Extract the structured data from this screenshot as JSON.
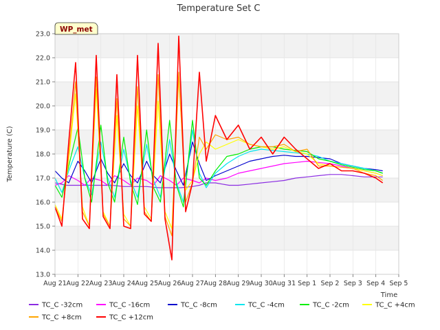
{
  "chart_data": {
    "type": "line",
    "title": "Temperature Set C",
    "xlabel": "Time",
    "ylabel": "Temperature (C)",
    "badge": "WP_met",
    "xlim": [
      0,
      15
    ],
    "ylim": [
      13.0,
      23.0
    ],
    "yticks": [
      "13.0",
      "14.0",
      "15.0",
      "16.0",
      "17.0",
      "18.0",
      "19.0",
      "20.0",
      "21.0",
      "22.0",
      "23.0"
    ],
    "xticks": [
      "Aug 21",
      "Aug 22",
      "Aug 23",
      "Aug 24",
      "Aug 25",
      "Aug 26",
      "Aug 27",
      "Aug 28",
      "Aug 29",
      "Aug 30",
      "Aug 31",
      "Sep 1",
      "Sep 2",
      "Sep 3",
      "Sep 4",
      "Sep 5"
    ],
    "x_unit": "days since Aug 21",
    "grid": true,
    "legend_position": "bottom",
    "series": [
      {
        "name": "TC_C -32cm",
        "color": "#8a2be2",
        "x": [
          0,
          0.5,
          1,
          1.5,
          2,
          2.5,
          3,
          3.5,
          4,
          4.5,
          5,
          5.5,
          6,
          6.3,
          6.6,
          7,
          7.3,
          7.6,
          8,
          8.5,
          9,
          9.5,
          10,
          10.5,
          11,
          11.5,
          12,
          12.5,
          13,
          13.5,
          14,
          14.3
        ],
        "y": [
          16.8,
          16.7,
          16.7,
          16.7,
          16.7,
          16.7,
          16.65,
          16.65,
          16.65,
          16.6,
          16.6,
          16.6,
          16.65,
          16.7,
          16.8,
          16.8,
          16.75,
          16.7,
          16.7,
          16.75,
          16.8,
          16.85,
          16.9,
          17.0,
          17.05,
          17.1,
          17.15,
          17.15,
          17.1,
          17.05,
          17.05,
          17.05
        ]
      },
      {
        "name": "TC_C -16cm",
        "color": "#ff00ff",
        "x": [
          0,
          0.3,
          0.6,
          1,
          1.3,
          1.6,
          2,
          2.3,
          2.6,
          3,
          3.3,
          3.6,
          4,
          4.3,
          4.6,
          5,
          5.3,
          5.6,
          6,
          6.3,
          6.6,
          7,
          7.5,
          8,
          8.5,
          9,
          9.5,
          10,
          10.5,
          11,
          11.5,
          12,
          12.5,
          13,
          13.5,
          14,
          14.3
        ],
        "y": [
          16.7,
          16.8,
          17.1,
          16.9,
          16.7,
          17.0,
          16.9,
          16.7,
          17.1,
          16.9,
          16.7,
          17.0,
          16.9,
          16.7,
          17.1,
          16.9,
          16.7,
          17.0,
          16.9,
          16.8,
          17.0,
          16.9,
          17.0,
          17.2,
          17.3,
          17.4,
          17.5,
          17.6,
          17.65,
          17.7,
          17.65,
          17.6,
          17.5,
          17.4,
          17.3,
          17.2,
          17.1
        ]
      },
      {
        "name": "TC_C -8cm",
        "color": "#0000cd",
        "x": [
          0,
          0.3,
          0.6,
          1,
          1.3,
          1.6,
          2,
          2.3,
          2.6,
          3,
          3.3,
          3.6,
          4,
          4.3,
          4.6,
          5,
          5.3,
          5.6,
          6,
          6.3,
          6.6,
          7,
          7.5,
          8,
          8.5,
          9,
          9.5,
          10,
          10.5,
          11,
          11.5,
          12,
          12.5,
          13,
          13.5,
          14,
          14.3
        ],
        "y": [
          17.3,
          17.0,
          16.8,
          17.7,
          17.3,
          16.8,
          17.8,
          17.2,
          16.8,
          17.6,
          17.1,
          16.8,
          17.7,
          17.1,
          16.8,
          18.0,
          17.3,
          16.7,
          18.5,
          17.6,
          16.9,
          17.1,
          17.3,
          17.5,
          17.7,
          17.8,
          17.9,
          17.95,
          17.9,
          17.9,
          17.85,
          17.8,
          17.6,
          17.5,
          17.4,
          17.35,
          17.3
        ]
      },
      {
        "name": "TC_C -4cm",
        "color": "#00e5ee",
        "x": [
          0,
          0.3,
          0.6,
          1,
          1.3,
          1.6,
          2,
          2.3,
          2.6,
          3,
          3.3,
          3.6,
          4,
          4.3,
          4.6,
          5,
          5.3,
          5.6,
          6,
          6.3,
          6.6,
          7,
          7.5,
          8,
          8.5,
          9,
          9.5,
          10,
          10.5,
          11,
          11.5,
          12,
          12.5,
          13,
          13.5,
          14,
          14.3
        ],
        "y": [
          17.0,
          16.4,
          17.3,
          18.3,
          17.0,
          16.3,
          18.5,
          17.0,
          16.2,
          18.2,
          16.9,
          16.2,
          18.4,
          16.9,
          16.2,
          18.6,
          16.8,
          16.0,
          19.0,
          17.2,
          16.6,
          17.2,
          17.6,
          17.9,
          18.1,
          18.2,
          18.15,
          18.1,
          18.05,
          18.0,
          17.9,
          17.7,
          17.6,
          17.5,
          17.4,
          17.3,
          17.2
        ]
      },
      {
        "name": "TC_C -2cm",
        "color": "#00ee00",
        "x": [
          0,
          0.3,
          0.6,
          1,
          1.3,
          1.6,
          2,
          2.3,
          2.6,
          3,
          3.3,
          3.6,
          4,
          4.3,
          4.6,
          5,
          5.3,
          5.6,
          6,
          6.3,
          6.6,
          7,
          7.5,
          8,
          8.5,
          9,
          9.5,
          10,
          10.5,
          11,
          11.5,
          12,
          12.5,
          13,
          13.5,
          14,
          14.3
        ],
        "y": [
          16.7,
          16.2,
          17.5,
          19.1,
          17.0,
          16.0,
          19.2,
          16.8,
          16.0,
          18.7,
          16.8,
          15.9,
          19.0,
          16.6,
          16.0,
          19.4,
          16.7,
          15.8,
          19.4,
          17.0,
          16.7,
          17.3,
          17.9,
          18.0,
          18.2,
          18.3,
          18.3,
          18.2,
          18.15,
          18.1,
          17.8,
          17.7,
          17.55,
          17.45,
          17.35,
          17.3,
          17.2
        ]
      },
      {
        "name": "TC_C +4cm",
        "color": "#ffff00",
        "x": [
          0,
          0.3,
          0.6,
          0.9,
          1.2,
          1.5,
          1.8,
          2.1,
          2.4,
          2.7,
          3.0,
          3.3,
          3.6,
          3.9,
          4.2,
          4.5,
          4.8,
          5.1,
          5.4,
          5.7,
          6.0,
          6.3,
          6.6,
          7.0,
          7.5,
          8,
          8.5,
          9,
          9.5,
          10,
          10.5,
          11,
          11.5,
          12,
          12.5,
          13,
          13.5,
          14,
          14.3
        ],
        "y": [
          15.9,
          15.3,
          17.8,
          20.5,
          15.8,
          15.0,
          20.7,
          15.6,
          15.0,
          19.6,
          15.5,
          15.0,
          20.0,
          15.8,
          15.3,
          20.2,
          15.6,
          14.9,
          21.2,
          16.5,
          16.9,
          18.0,
          18.5,
          18.2,
          18.4,
          18.6,
          18.4,
          18.3,
          18.2,
          18.3,
          18.1,
          18.0,
          17.6,
          17.5,
          17.45,
          17.4,
          17.3,
          17.2,
          17.1
        ]
      },
      {
        "name": "TC_C +8cm",
        "color": "#ffa500",
        "x": [
          0,
          0.3,
          0.6,
          0.9,
          1.2,
          1.5,
          1.8,
          2.1,
          2.4,
          2.7,
          3.0,
          3.3,
          3.6,
          3.9,
          4.2,
          4.5,
          4.8,
          5.1,
          5.4,
          5.7,
          6.0,
          6.3,
          6.6,
          7.0,
          7.5,
          8,
          8.5,
          9,
          9.5,
          10,
          10.5,
          11,
          11.5,
          12,
          12.5,
          13,
          13.5,
          14,
          14.3
        ],
        "y": [
          15.8,
          15.2,
          18.0,
          21.0,
          15.6,
          15.0,
          21.2,
          15.5,
          15.0,
          20.3,
          15.3,
          15.0,
          20.8,
          15.6,
          15.2,
          21.3,
          15.4,
          14.6,
          21.4,
          16.0,
          16.8,
          18.7,
          18.2,
          18.8,
          18.6,
          18.7,
          18.4,
          18.3,
          18.3,
          18.4,
          18.1,
          18.2,
          17.5,
          17.5,
          17.45,
          17.4,
          17.2,
          17.1,
          16.9
        ]
      },
      {
        "name": "TC_C +12cm",
        "color": "#ff0000",
        "x": [
          0,
          0.3,
          0.6,
          0.9,
          1.2,
          1.5,
          1.8,
          2.1,
          2.4,
          2.7,
          3.0,
          3.3,
          3.6,
          3.9,
          4.2,
          4.5,
          4.8,
          5.1,
          5.4,
          5.7,
          6.0,
          6.3,
          6.6,
          7.0,
          7.5,
          8,
          8.5,
          9,
          9.5,
          10,
          10.5,
          11,
          11.5,
          12,
          12.5,
          13,
          13.5,
          14,
          14.3
        ],
        "y": [
          15.8,
          15.0,
          18.5,
          21.8,
          15.3,
          14.9,
          22.1,
          15.4,
          14.9,
          21.3,
          15.0,
          14.9,
          22.1,
          15.5,
          15.2,
          22.6,
          15.3,
          13.6,
          22.9,
          15.6,
          16.8,
          21.4,
          17.7,
          19.6,
          18.6,
          19.2,
          18.2,
          18.7,
          18.0,
          18.7,
          18.2,
          17.8,
          17.4,
          17.6,
          17.3,
          17.3,
          17.2,
          17.0,
          16.8
        ]
      }
    ]
  }
}
